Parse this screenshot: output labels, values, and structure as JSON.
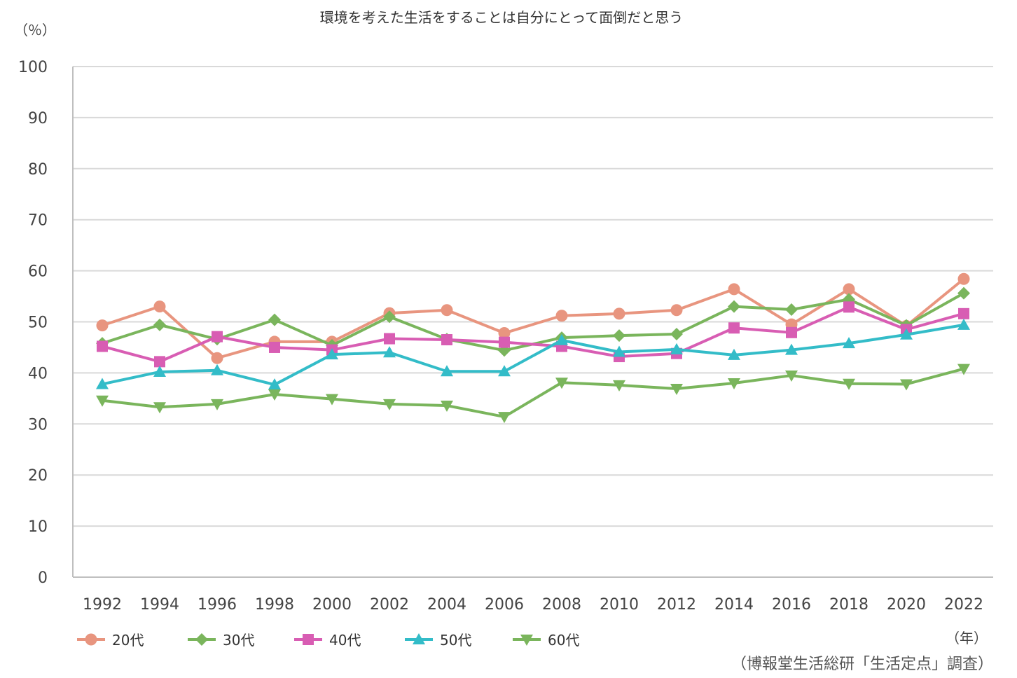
{
  "chart_data": {
    "type": "line",
    "title": "環境を考えた生活をすることは自分にとって面倒だと思う",
    "ylabel": "（％）",
    "xlabel": "（年）",
    "source": "（博報堂生活総研「生活定点」調査）",
    "ylim": [
      0,
      100
    ],
    "yticks": [
      "0",
      "10",
      "20",
      "30",
      "40",
      "50",
      "60",
      "70",
      "80",
      "90",
      "100"
    ],
    "grid": true,
    "legend_position": "bottom-left",
    "categories": [
      "1992",
      "1994",
      "1996",
      "1998",
      "2000",
      "2002",
      "2004",
      "2006",
      "2008",
      "2010",
      "2012",
      "2014",
      "2016",
      "2018",
      "2020",
      "2022"
    ],
    "series": [
      {
        "name": "20代",
        "color": "#e8957f",
        "marker": "circle",
        "values": [
          49.3,
          53.0,
          42.9,
          46.1,
          46.1,
          51.7,
          52.3,
          47.8,
          51.2,
          51.6,
          52.3,
          56.4,
          49.5,
          56.4,
          49.2,
          58.4
        ]
      },
      {
        "name": "30代",
        "color": "#7ab55c",
        "marker": "diamond",
        "values": [
          45.8,
          49.4,
          46.6,
          50.4,
          45.4,
          51.0,
          46.6,
          44.4,
          46.9,
          47.3,
          47.6,
          53.0,
          52.4,
          54.4,
          49.3,
          55.6
        ]
      },
      {
        "name": "40代",
        "color": "#d85db3",
        "marker": "square",
        "values": [
          45.2,
          42.2,
          47.1,
          45.0,
          44.5,
          46.7,
          46.5,
          46.0,
          45.2,
          43.2,
          43.8,
          48.8,
          47.9,
          52.9,
          48.5,
          51.6
        ]
      },
      {
        "name": "50代",
        "color": "#33bcc8",
        "marker": "triangle-up",
        "values": [
          37.8,
          40.2,
          40.5,
          37.7,
          43.6,
          44.0,
          40.3,
          40.3,
          46.4,
          44.1,
          44.6,
          43.5,
          44.5,
          45.8,
          47.5,
          49.4
        ]
      },
      {
        "name": "60代",
        "color": "#7ab55c",
        "marker": "triangle-down",
        "values": [
          34.6,
          33.3,
          33.9,
          35.8,
          34.9,
          33.9,
          33.6,
          31.4,
          38.1,
          37.6,
          36.9,
          38.0,
          39.5,
          37.9,
          37.8,
          40.8
        ]
      }
    ]
  }
}
